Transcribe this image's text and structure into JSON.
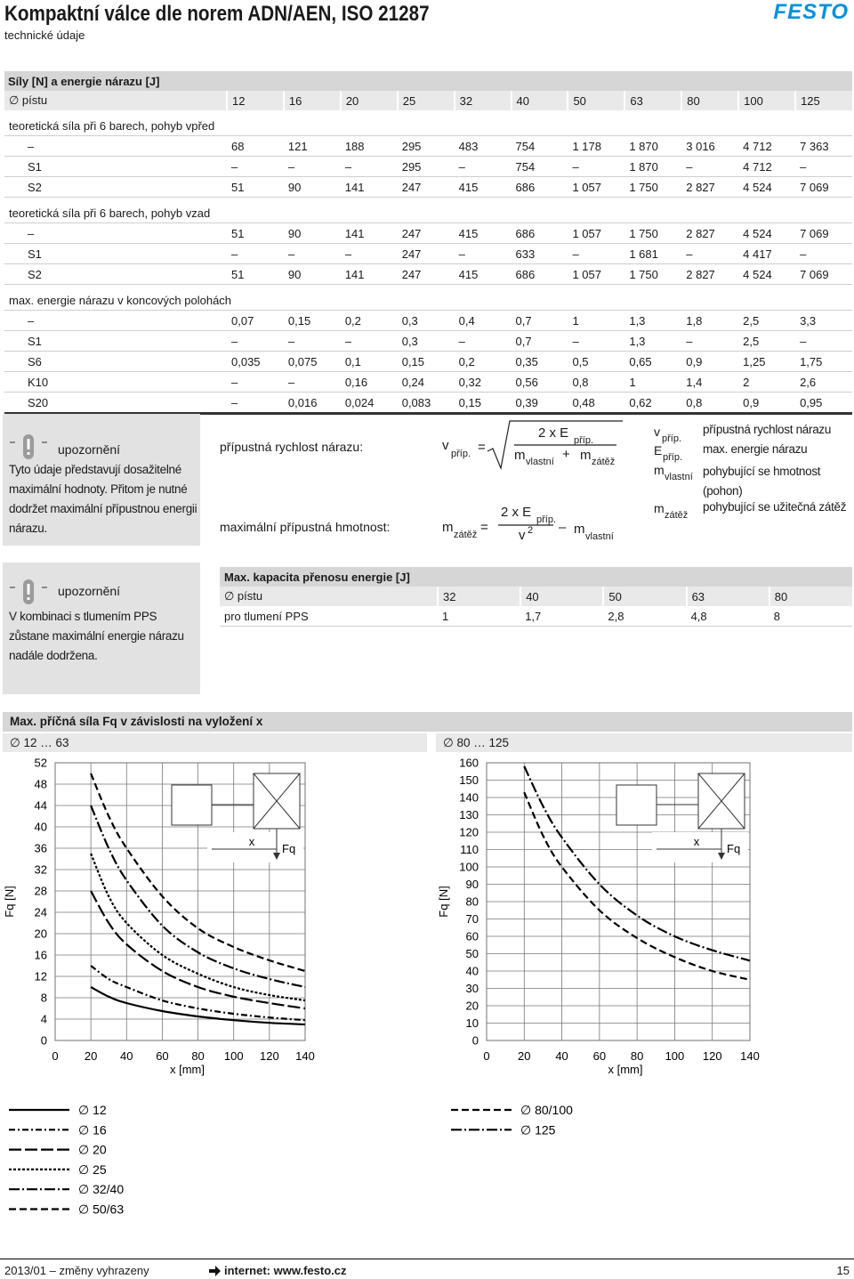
{
  "header": {
    "title": "Kompaktní válce dle norem ADN/AEN, ISO 21287",
    "subtitle": "technické údaje",
    "logo": "FESTO"
  },
  "table": {
    "title": "Síly [N] a energie nárazu [J]",
    "header_label": "∅ pístu",
    "diameters": [
      "12",
      "16",
      "20",
      "25",
      "32",
      "40",
      "50",
      "63",
      "80",
      "100",
      "125"
    ],
    "sections": [
      {
        "label": "teoretická síla při 6 barech, pohyb vpřed",
        "rows": [
          {
            "label": "–",
            "values": [
              "68",
              "121",
              "188",
              "295",
              "483",
              "754",
              "1 178",
              "1 870",
              "3 016",
              "4 712",
              "7 363"
            ]
          },
          {
            "label": "S1",
            "values": [
              "–",
              "–",
              "–",
              "295",
              "–",
              "754",
              "–",
              "1 870",
              "–",
              "4 712",
              "–"
            ]
          },
          {
            "label": "S2",
            "values": [
              "51",
              "90",
              "141",
              "247",
              "415",
              "686",
              "1 057",
              "1 750",
              "2 827",
              "4 524",
              "7 069"
            ]
          }
        ]
      },
      {
        "label": "teoretická síla při 6 barech, pohyb vzad",
        "rows": [
          {
            "label": "–",
            "values": [
              "51",
              "90",
              "141",
              "247",
              "415",
              "686",
              "1 057",
              "1 750",
              "2 827",
              "4 524",
              "7 069"
            ]
          },
          {
            "label": "S1",
            "values": [
              "–",
              "–",
              "–",
              "247",
              "–",
              "633",
              "–",
              "1 681",
              "–",
              "4 417",
              "–"
            ]
          },
          {
            "label": "S2",
            "values": [
              "51",
              "90",
              "141",
              "247",
              "415",
              "686",
              "1 057",
              "1 750",
              "2 827",
              "4 524",
              "7 069"
            ]
          }
        ]
      },
      {
        "label": "max. energie nárazu v koncových polohách",
        "rows": [
          {
            "label": "–",
            "values": [
              "0,07",
              "0,15",
              "0,2",
              "0,3",
              "0,4",
              "0,7",
              "1",
              "1,3",
              "1,8",
              "2,5",
              "3,3"
            ]
          },
          {
            "label": "S1",
            "values": [
              "–",
              "–",
              "–",
              "0,3",
              "–",
              "0,7",
              "–",
              "1,3",
              "–",
              "2,5",
              "–"
            ]
          },
          {
            "label": "S6",
            "values": [
              "0,035",
              "0,075",
              "0,1",
              "0,15",
              "0,2",
              "0,35",
              "0,5",
              "0,65",
              "0,9",
              "1,25",
              "1,75"
            ]
          },
          {
            "label": "K10",
            "values": [
              "–",
              "–",
              "0,16",
              "0,24",
              "0,32",
              "0,56",
              "0,8",
              "1",
              "1,4",
              "2",
              "2,6"
            ]
          },
          {
            "label": "S20",
            "values": [
              "–",
              "0,016",
              "0,024",
              "0,083",
              "0,15",
              "0,39",
              "0,48",
              "0,62",
              "0,8",
              "0,9",
              "0,95"
            ]
          }
        ]
      }
    ]
  },
  "notes": [
    {
      "label": "upozornění",
      "text": "Tyto údaje představují dosažitelné maximální hodnoty. Přitom je nutné dodržet maximální přípustnou energii nárazu."
    },
    {
      "label": "upozornění",
      "text": "V kombinaci s tlumením PPS zůstane maximální energie nárazu nadále dodržena."
    }
  ],
  "formulas": [
    {
      "label": "přípustná rychlost nárazu:",
      "lhs": "v",
      "lhs_sub": "příp.",
      "eq": "=",
      "num": "2 x E",
      "num_sub": "příp.",
      "den": [
        "m",
        "vlastní",
        "+",
        "m",
        "zátěž"
      ]
    },
    {
      "label": "maximální přípustná hmotnost:",
      "lhs": "m",
      "lhs_sub": "zátěž",
      "eq": "=",
      "num": "2 x E",
      "num_sub": "příp.",
      "den": [
        "v",
        "2"
      ],
      "minus": "–",
      "tail": "m",
      "tail_sub": "vlastní"
    }
  ],
  "variables": [
    {
      "sym": "v",
      "sub": "příp.",
      "desc": "přípustná rychlost nárazu"
    },
    {
      "sym": "E",
      "sub": "příp.",
      "desc": "max. energie nárazu"
    },
    {
      "sym": "m",
      "sub": "vlastní",
      "desc": "pohybující se hmotnost (pohon)"
    },
    {
      "sym": "m",
      "sub": "zátěž",
      "desc": "pohybující se užitečná zátěž"
    }
  ],
  "table2": {
    "title": "Max. kapacita přenosu energie [J]",
    "header_label": "∅ pístu",
    "diameters": [
      "32",
      "40",
      "50",
      "63",
      "80"
    ],
    "row_label": "pro tlumení PPS",
    "values": [
      "1",
      "1,7",
      "2,8",
      "4,8",
      "8"
    ]
  },
  "chart_section": {
    "title": "Max. příčná síla Fq v závislosti na vyložení x"
  },
  "chart_data": [
    {
      "type": "line",
      "title": "∅ 12 … 63",
      "xlabel": "x [mm]",
      "ylabel": "Fq [N]",
      "xlim": [
        0,
        140
      ],
      "xticks": [
        0,
        20,
        40,
        60,
        80,
        100,
        120,
        140
      ],
      "ylim": [
        0,
        52
      ],
      "yticks": [
        0,
        4,
        8,
        12,
        16,
        20,
        24,
        28,
        32,
        36,
        40,
        44,
        48,
        52
      ],
      "grid": true,
      "annotations": [
        "x",
        "Fq"
      ],
      "x": [
        20,
        30,
        40,
        60,
        80,
        100,
        120,
        140
      ],
      "series": [
        {
          "name": "∅ 12",
          "color": "#000000",
          "line_style": "solid",
          "values": [
            10,
            8.2,
            7,
            5.5,
            4.5,
            3.8,
            3.3,
            3
          ]
        },
        {
          "name": "∅ 16",
          "color": "#000000",
          "line_style": "dash-dot",
          "values": [
            14,
            11.5,
            10,
            7.5,
            6,
            5,
            4.3,
            3.8
          ]
        },
        {
          "name": "∅ 20",
          "color": "#000000",
          "line_style": "long-dash",
          "values": [
            28,
            22,
            18,
            13,
            10,
            8.2,
            7,
            6
          ]
        },
        {
          "name": "∅ 25",
          "color": "#000000",
          "line_style": "dotted",
          "values": [
            35,
            27,
            22,
            16,
            12.5,
            10,
            8.5,
            7.5
          ]
        },
        {
          "name": "∅ 32/40",
          "color": "#000000",
          "line_style": "long-dash-dot",
          "values": [
            44,
            36,
            30,
            21.5,
            16.5,
            13.5,
            11.5,
            10
          ]
        },
        {
          "name": "∅ 50/63",
          "color": "#000000",
          "line_style": "dashed",
          "values": [
            50,
            42,
            36,
            27,
            21,
            17.5,
            15,
            13
          ]
        }
      ]
    },
    {
      "type": "line",
      "title": "∅ 80 … 125",
      "xlabel": "x [mm]",
      "ylabel": "Fq [N]",
      "xlim": [
        0,
        140
      ],
      "xticks": [
        0,
        20,
        40,
        60,
        80,
        100,
        120,
        140
      ],
      "ylim": [
        0,
        160
      ],
      "yticks": [
        0,
        10,
        20,
        30,
        40,
        50,
        60,
        70,
        80,
        90,
        100,
        110,
        120,
        130,
        140,
        150,
        160
      ],
      "grid": true,
      "annotations": [
        "x",
        "Fq"
      ],
      "x": [
        20,
        30,
        40,
        60,
        80,
        100,
        120,
        140
      ],
      "series": [
        {
          "name": "∅ 80/100",
          "color": "#000000",
          "line_style": "dashed",
          "values": [
            143,
            118,
            100,
            75,
            59,
            48,
            40,
            35
          ]
        },
        {
          "name": "∅ 125",
          "color": "#000000",
          "line_style": "long-dash-dot",
          "values": [
            158,
            135,
            117,
            90,
            72,
            60,
            52,
            46
          ]
        }
      ]
    }
  ],
  "footer": {
    "date": "2013/01 – změny vyhrazeny",
    "internet": "internet: www.festo.cz",
    "page": "15"
  }
}
